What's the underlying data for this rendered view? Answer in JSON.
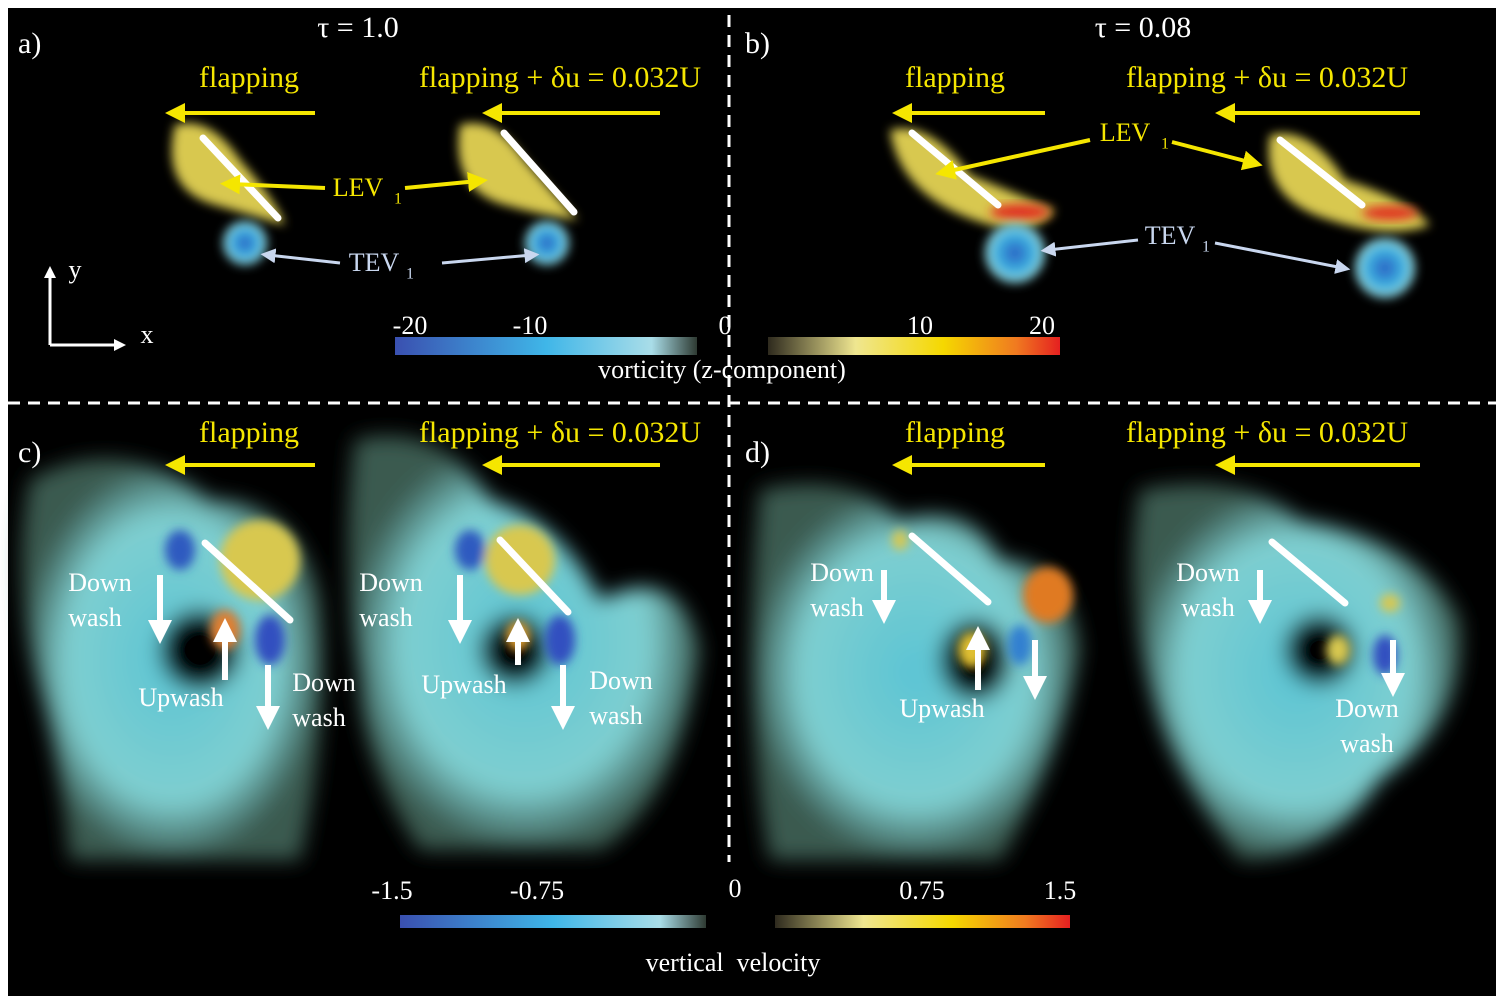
{
  "header": {
    "tau_left": "τ = 1.0",
    "tau_right": "τ = 0.08"
  },
  "panel_labels": [
    "a)",
    "b)",
    "c)",
    "d)"
  ],
  "annotations": {
    "flapping": "flapping",
    "flapping_du": "flapping + δu = 0.032U",
    "lev": "LEV",
    "lev_sub": "1",
    "tev": "TEV",
    "tev_sub": "1",
    "down": "Down",
    "wash": "wash",
    "upwash": "Upwash"
  },
  "axes": {
    "x": "x",
    "y": "y"
  },
  "colorbars": [
    {
      "label": "vorticity (z-component)",
      "ticks": [
        "-20",
        "-10",
        "0",
        "10",
        "20"
      ]
    },
    {
      "label": "vertical  velocity",
      "ticks": [
        "-1.5",
        "-0.75",
        "0",
        "0.75",
        "1.5"
      ]
    }
  ]
}
